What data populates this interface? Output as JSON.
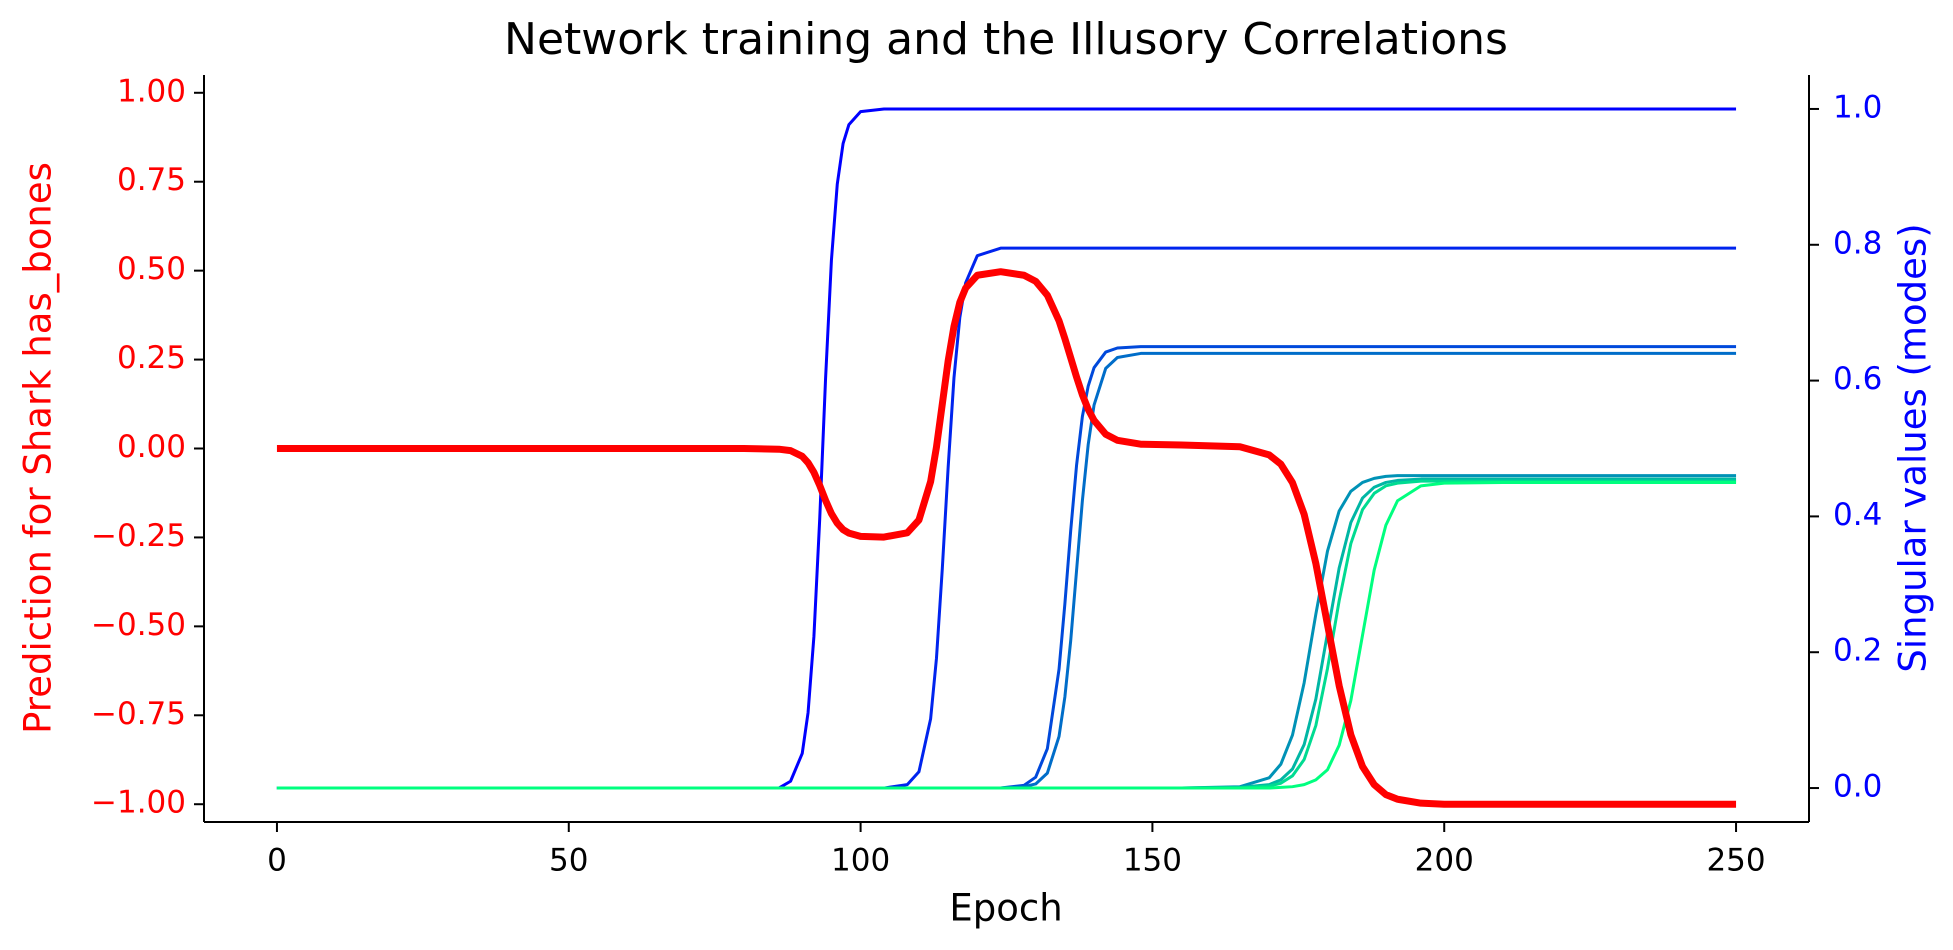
{
  "chart_data": {
    "type": "line",
    "title": "Network training and the Illusory Correlations",
    "xlabel": "Epoch",
    "ylabel": "Prediction for Shark has_bones",
    "y2label": "Singular values (modes)",
    "ylabel_color": "#ff0000",
    "y2label_color": "#0000ff",
    "xlim": [
      -12.5,
      262.5
    ],
    "ylim": [
      -1.05,
      1.05
    ],
    "y2lim": [
      -0.05,
      1.05
    ],
    "xticks": [
      0,
      50,
      100,
      150,
      200,
      250
    ],
    "yticks": [
      {
        "value": -1.0,
        "label": "−1.00"
      },
      {
        "value": -0.75,
        "label": "−0.75"
      },
      {
        "value": -0.5,
        "label": "−0.50"
      },
      {
        "value": -0.25,
        "label": "−0.25"
      },
      {
        "value": 0,
        "label": "0.00"
      },
      {
        "value": 0.25,
        "label": "0.25"
      },
      {
        "value": 0.5,
        "label": "0.50"
      },
      {
        "value": 0.75,
        "label": "0.75"
      },
      {
        "value": 1.0,
        "label": "1.00"
      }
    ],
    "y2ticks": [
      {
        "value": 0,
        "label": "0.0"
      },
      {
        "value": 0.2,
        "label": "0.2"
      },
      {
        "value": 0.4,
        "label": "0.4"
      },
      {
        "value": 0.6,
        "label": "0.6"
      },
      {
        "value": 0.8,
        "label": "0.8"
      },
      {
        "value": 1.0,
        "label": "1.0"
      }
    ],
    "x": [
      0,
      20,
      40,
      60,
      80,
      86,
      88,
      90,
      91,
      92,
      93,
      94,
      95,
      96,
      97,
      98,
      100,
      104,
      108,
      110,
      112,
      113,
      114,
      115,
      116,
      117,
      118,
      120,
      124,
      128,
      130,
      132,
      134,
      135,
      136,
      137,
      138,
      139,
      140,
      142,
      144,
      148,
      155,
      165,
      170,
      172,
      174,
      176,
      178,
      180,
      182,
      184,
      186,
      188,
      190,
      192,
      196,
      200,
      210,
      230,
      250
    ],
    "series": [
      {
        "color": "#0000ff",
        "axis": "y2",
        "values": [
          0,
          0,
          0,
          0,
          0,
          0,
          0.01,
          0.051,
          0.111,
          0.223,
          0.397,
          0.603,
          0.777,
          0.889,
          0.949,
          0.977,
          0.996,
          1,
          1,
          1,
          1,
          1,
          1,
          1,
          1,
          1,
          1,
          1,
          1,
          1,
          1,
          1,
          1,
          1,
          1,
          1,
          1,
          1,
          1,
          1,
          1,
          1,
          1,
          1,
          1,
          1,
          1,
          1,
          1,
          1,
          1,
          1,
          1,
          1,
          1,
          1,
          1,
          1,
          1,
          1,
          1
        ]
      },
      {
        "color": "#0024ee",
        "axis": "y2",
        "values": [
          0,
          0,
          0,
          0,
          0,
          0,
          0,
          0,
          0,
          0,
          0,
          0,
          0,
          0,
          0,
          0,
          0,
          0,
          0.005,
          0.024,
          0.102,
          0.191,
          0.323,
          0.472,
          0.604,
          0.693,
          0.744,
          0.784,
          0.795,
          0.795,
          0.795,
          0.795,
          0.795,
          0.795,
          0.795,
          0.795,
          0.795,
          0.795,
          0.795,
          0.795,
          0.795,
          0.795,
          0.795,
          0.795,
          0.795,
          0.795,
          0.795,
          0.795,
          0.795,
          0.795,
          0.795,
          0.795,
          0.795,
          0.795,
          0.795,
          0.795,
          0.795,
          0.795,
          0.795,
          0.795,
          0.795
        ]
      },
      {
        "color": "#0049db",
        "axis": "y2",
        "values": [
          0,
          0,
          0,
          0,
          0,
          0,
          0,
          0,
          0,
          0,
          0,
          0,
          0,
          0,
          0,
          0,
          0,
          0,
          0,
          0,
          0,
          0,
          0,
          0,
          0,
          0,
          0,
          0,
          0,
          0.004,
          0.016,
          0.058,
          0.175,
          0.271,
          0.379,
          0.475,
          0.547,
          0.592,
          0.619,
          0.642,
          0.648,
          0.65,
          0.65,
          0.65,
          0.65,
          0.65,
          0.65,
          0.65,
          0.65,
          0.65,
          0.65,
          0.65,
          0.65,
          0.65,
          0.65,
          0.65,
          0.65,
          0.65,
          0.65,
          0.65,
          0.65
        ]
      },
      {
        "color": "#006dc9",
        "axis": "y2",
        "values": [
          0,
          0,
          0,
          0,
          0,
          0,
          0,
          0,
          0,
          0,
          0,
          0,
          0,
          0,
          0,
          0,
          0,
          0,
          0,
          0,
          0,
          0,
          0,
          0,
          0,
          0,
          0,
          0,
          0,
          0.002,
          0.006,
          0.022,
          0.076,
          0.134,
          0.217,
          0.32,
          0.423,
          0.506,
          0.564,
          0.618,
          0.634,
          0.64,
          0.64,
          0.64,
          0.64,
          0.64,
          0.64,
          0.64,
          0.64,
          0.64,
          0.64,
          0.64,
          0.64,
          0.64,
          0.64,
          0.64,
          0.64,
          0.64,
          0.64,
          0.64,
          0.64
        ]
      },
      {
        "color": "#0092b6",
        "axis": "y2",
        "values": [
          0,
          0,
          0,
          0,
          0,
          0,
          0,
          0,
          0,
          0,
          0,
          0,
          0,
          0,
          0,
          0,
          0,
          0,
          0,
          0,
          0,
          0,
          0,
          0,
          0,
          0,
          0,
          0,
          0,
          0,
          0,
          0,
          0,
          0,
          0,
          0,
          0,
          0,
          0,
          0,
          0,
          0,
          0,
          0.002,
          0.015,
          0.035,
          0.078,
          0.155,
          0.256,
          0.349,
          0.408,
          0.437,
          0.45,
          0.456,
          0.459,
          0.46,
          0.46,
          0.46,
          0.46,
          0.46,
          0.46
        ]
      },
      {
        "color": "#00b6a4",
        "axis": "y2",
        "values": [
          0,
          0,
          0,
          0,
          0,
          0,
          0,
          0,
          0,
          0,
          0,
          0,
          0,
          0,
          0,
          0,
          0,
          0,
          0,
          0,
          0,
          0,
          0,
          0,
          0,
          0,
          0,
          0,
          0,
          0,
          0,
          0,
          0,
          0,
          0,
          0,
          0,
          0,
          0,
          0,
          0,
          0,
          0,
          0.001,
          0.005,
          0.012,
          0.028,
          0.064,
          0.131,
          0.228,
          0.324,
          0.391,
          0.427,
          0.443,
          0.45,
          0.453,
          0.455,
          0.455,
          0.455,
          0.455,
          0.455
        ]
      },
      {
        "color": "#00db91",
        "axis": "y2",
        "values": [
          0,
          0,
          0,
          0,
          0,
          0,
          0,
          0,
          0,
          0,
          0,
          0,
          0,
          0,
          0,
          0,
          0,
          0,
          0,
          0,
          0,
          0,
          0,
          0,
          0,
          0,
          0,
          0,
          0,
          0,
          0,
          0,
          0,
          0,
          0,
          0,
          0,
          0,
          0,
          0,
          0,
          0,
          0,
          0,
          0.003,
          0.007,
          0.018,
          0.042,
          0.092,
          0.176,
          0.276,
          0.36,
          0.41,
          0.434,
          0.445,
          0.449,
          0.452,
          0.452,
          0.452,
          0.452,
          0.452
        ]
      },
      {
        "color": "#00ff7f",
        "axis": "y2",
        "values": [
          0,
          0,
          0,
          0,
          0,
          0,
          0,
          0,
          0,
          0,
          0,
          0,
          0,
          0,
          0,
          0,
          0,
          0,
          0,
          0,
          0,
          0,
          0,
          0,
          0,
          0,
          0,
          0,
          0,
          0,
          0,
          0,
          0,
          0,
          0,
          0,
          0,
          0,
          0,
          0,
          0,
          0,
          0,
          0,
          0,
          0.001,
          0.002,
          0.005,
          0.012,
          0.027,
          0.063,
          0.129,
          0.225,
          0.321,
          0.387,
          0.423,
          0.445,
          0.449,
          0.45,
          0.45,
          0.45
        ]
      },
      {
        "color": "#ff0000",
        "axis": "y",
        "values": [
          0,
          0,
          0,
          0,
          0,
          -0.002,
          -0.006,
          -0.022,
          -0.04,
          -0.067,
          -0.104,
          -0.146,
          -0.183,
          -0.21,
          -0.228,
          -0.238,
          -0.247,
          -0.249,
          -0.237,
          -0.201,
          -0.093,
          0.004,
          0.125,
          0.246,
          0.343,
          0.411,
          0.451,
          0.487,
          0.497,
          0.487,
          0.47,
          0.431,
          0.359,
          0.309,
          0.255,
          0.201,
          0.151,
          0.11,
          0.079,
          0.04,
          0.023,
          0.012,
          0.01,
          0.005,
          -0.018,
          -0.044,
          -0.096,
          -0.185,
          -0.323,
          -0.495,
          -0.667,
          -0.805,
          -0.894,
          -0.945,
          -0.973,
          -0.986,
          -0.997,
          -1.0,
          -1.0,
          -1.0,
          -1.0
        ]
      }
    ]
  }
}
